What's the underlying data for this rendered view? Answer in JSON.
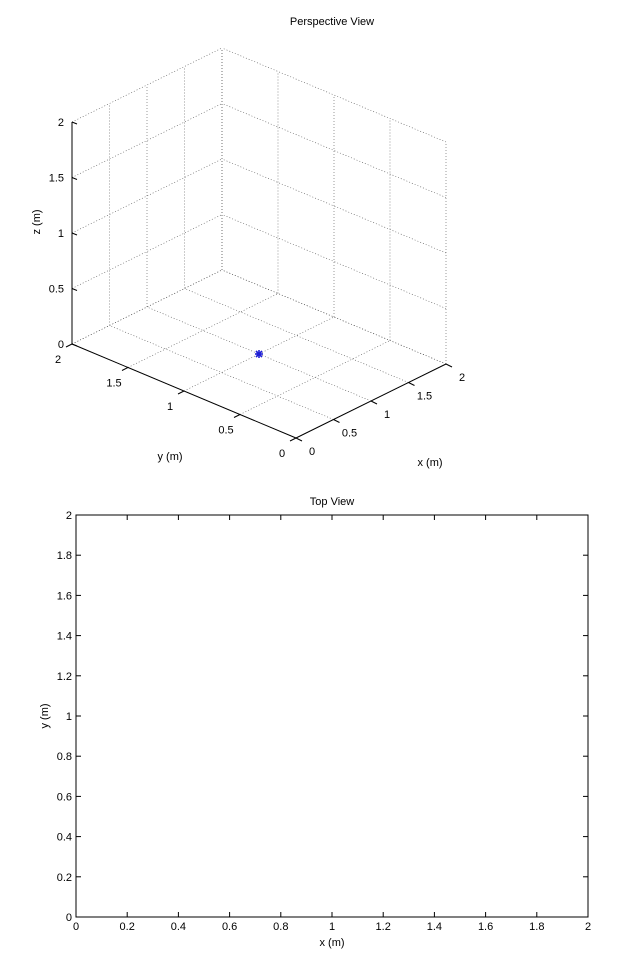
{
  "chart_data": [
    {
      "type": "scatter",
      "title": "Perspective View",
      "xlabel": "x (m)",
      "ylabel": "y (m)",
      "zlabel": "z (m)",
      "xlim": [
        0,
        2
      ],
      "ylim": [
        0,
        2
      ],
      "zlim": [
        0,
        2
      ],
      "xticks": [
        "0",
        "0.5",
        "1",
        "1.5",
        "2"
      ],
      "yticks": [
        "0",
        "0.5",
        "1",
        "1.5",
        "2"
      ],
      "zticks": [
        "0",
        "0.5",
        "1",
        "1.5",
        "2"
      ],
      "grid": true,
      "series": [
        {
          "color": "#1f1fd6",
          "marker": "*",
          "points": [
            {
              "x": 1.0,
              "y": 1.0,
              "z": 0.0
            }
          ]
        }
      ]
    },
    {
      "type": "scatter",
      "title": "Top View",
      "xlabel": "x (m)",
      "ylabel": "y (m)",
      "xlim": [
        0,
        2
      ],
      "ylim": [
        0,
        2
      ],
      "xticks": [
        "0",
        "0.2",
        "0.4",
        "0.6",
        "0.8",
        "1",
        "1.2",
        "1.4",
        "1.6",
        "1.8",
        "2"
      ],
      "yticks": [
        "0",
        "0.2",
        "0.4",
        "0.6",
        "0.8",
        "1",
        "1.2",
        "1.4",
        "1.6",
        "1.8",
        "2"
      ],
      "grid": false,
      "series": []
    }
  ]
}
